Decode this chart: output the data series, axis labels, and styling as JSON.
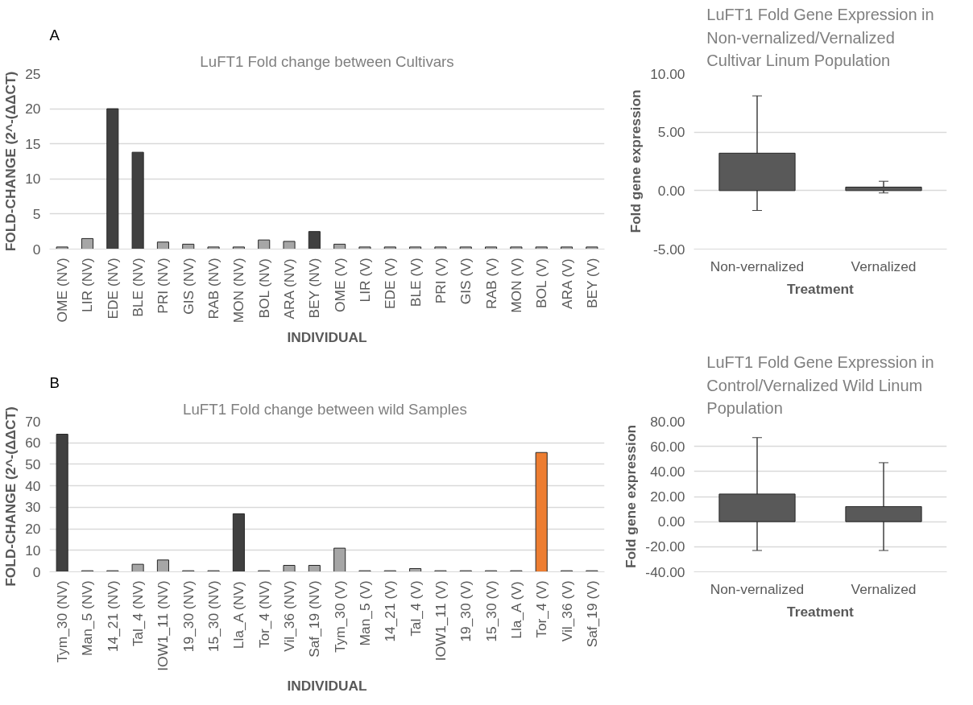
{
  "chart_data": [
    {
      "type": "bar",
      "title": "LuFT1 Fold change between Cultivars",
      "xlabel": "INDIVIDUAL",
      "ylabel": "FOLD-CHANGE (2^-(ΔΔCT)",
      "annotations": [
        "A"
      ],
      "categories": [
        "OME (NV)",
        "LIR (NV)",
        "EDE (NV)",
        "BLE (NV)",
        "PRI (NV)",
        "GIS (NV)",
        "RAB (NV)",
        "MON (NV)",
        "BOL (NV)",
        "ARA (NV)",
        "BEY (NV)",
        "OME (V)",
        "LIR (V)",
        "EDE (V)",
        "BLE (V)",
        "PRI (V)",
        "GIS (V)",
        "RAB (V)",
        "MON (V)",
        "BOL (V)",
        "ARA (V)",
        "BEY (V)"
      ],
      "values": [
        0.3,
        1.5,
        20,
        13.8,
        1.0,
        0.7,
        0.3,
        0.3,
        1.3,
        1.1,
        2.5,
        0.7,
        0.3,
        0.3,
        0.3,
        0.3,
        0.3,
        0.3,
        0.3,
        0.3,
        0.3,
        0.3
      ],
      "colors": [
        "#a6a6a6",
        "#a6a6a6",
        "#404040",
        "#404040",
        "#a6a6a6",
        "#a6a6a6",
        "#a6a6a6",
        "#a6a6a6",
        "#a6a6a6",
        "#a6a6a6",
        "#404040",
        "#a6a6a6",
        "#a6a6a6",
        "#a6a6a6",
        "#a6a6a6",
        "#a6a6a6",
        "#a6a6a6",
        "#a6a6a6",
        "#a6a6a6",
        "#a6a6a6",
        "#a6a6a6",
        "#a6a6a6"
      ],
      "ylim": [
        0,
        25
      ],
      "yticks": [
        0,
        5,
        10,
        15,
        20,
        25
      ],
      "grid": "y"
    },
    {
      "type": "bar",
      "title": "LuFT1 Fold Gene Expression in Non-vernalized/Vernalized Cultivar Linum Population",
      "xlabel": "Treatment",
      "ylabel": "Fold gene expression",
      "categories": [
        "Non-vernalized",
        "Vernalized"
      ],
      "values": [
        3.2,
        0.3
      ],
      "errors": [
        4.9,
        0.5
      ],
      "color": "#595959",
      "ylim": [
        -5,
        10
      ],
      "yticks": [
        {
          "value": -5,
          "label": "-5.00"
        },
        {
          "value": 0,
          "label": "0.00"
        },
        {
          "value": 5,
          "label": "5.00"
        },
        {
          "value": 10,
          "label": "10.00"
        }
      ],
      "grid": "y"
    },
    {
      "type": "bar",
      "title": "LuFT1 Fold change between  wild Samples",
      "xlabel": "INDIVIDUAL",
      "ylabel": "FOLD-CHANGE (2^-(ΔΔCT)",
      "annotations": [
        "B"
      ],
      "categories": [
        "Tym_30 (NV)",
        "Man_5 (NV)",
        "14_21 (NV)",
        "Tal_4 (NV)",
        "IOW1_11 (NV)",
        "19_30 (NV)",
        "15_30 (NV)",
        "Lla_A (NV)",
        "Tor_4 (NV)",
        "Vil_36 (NV)",
        "Saf_19 (NV)",
        "Tym_30 (V)",
        "Man_5 (V)",
        "14_21 (V)",
        "Tal_4 (V)",
        "IOW1_11 (V)",
        "19_30 (V)",
        "15_30 (V)",
        "Lla_A (V)",
        "Tor_4 (V)",
        "Vil_36 (V)",
        "Saf_19 (V)"
      ],
      "values": [
        64,
        0.5,
        0.5,
        3.5,
        5.5,
        0.5,
        0.5,
        27,
        0.5,
        3,
        3,
        11,
        0.5,
        0.5,
        1.5,
        0.5,
        0.5,
        0.5,
        0.5,
        55.5,
        0.5,
        0.5
      ],
      "colors": [
        "#404040",
        "#a6a6a6",
        "#a6a6a6",
        "#a6a6a6",
        "#a6a6a6",
        "#a6a6a6",
        "#a6a6a6",
        "#404040",
        "#a6a6a6",
        "#a6a6a6",
        "#a6a6a6",
        "#a6a6a6",
        "#a6a6a6",
        "#a6a6a6",
        "#a6a6a6",
        "#a6a6a6",
        "#a6a6a6",
        "#a6a6a6",
        "#a6a6a6",
        "#ed7d31",
        "#a6a6a6",
        "#a6a6a6"
      ],
      "ylim": [
        0,
        70
      ],
      "yticks": [
        0,
        10,
        20,
        30,
        40,
        50,
        60,
        70
      ],
      "grid": "y"
    },
    {
      "type": "bar",
      "title": "LuFT1 Fold Gene Expression in Control/Vernalized Wild Linum Population",
      "xlabel": "Treatment",
      "ylabel": "Fold gene expression",
      "categories": [
        "Non-vernalized",
        "Vernalized"
      ],
      "values": [
        22,
        12
      ],
      "errors": [
        45,
        35
      ],
      "color": "#595959",
      "ylim": [
        -40,
        80
      ],
      "yticks": [
        {
          "value": -40,
          "label": "-40.00"
        },
        {
          "value": -20,
          "label": "-20.00"
        },
        {
          "value": 0,
          "label": "0.00"
        },
        {
          "value": 20,
          "label": "20.00"
        },
        {
          "value": 40,
          "label": "40.00"
        },
        {
          "value": 60,
          "label": "60.00"
        },
        {
          "value": 80,
          "label": "80.00"
        }
      ],
      "grid": "y"
    }
  ]
}
